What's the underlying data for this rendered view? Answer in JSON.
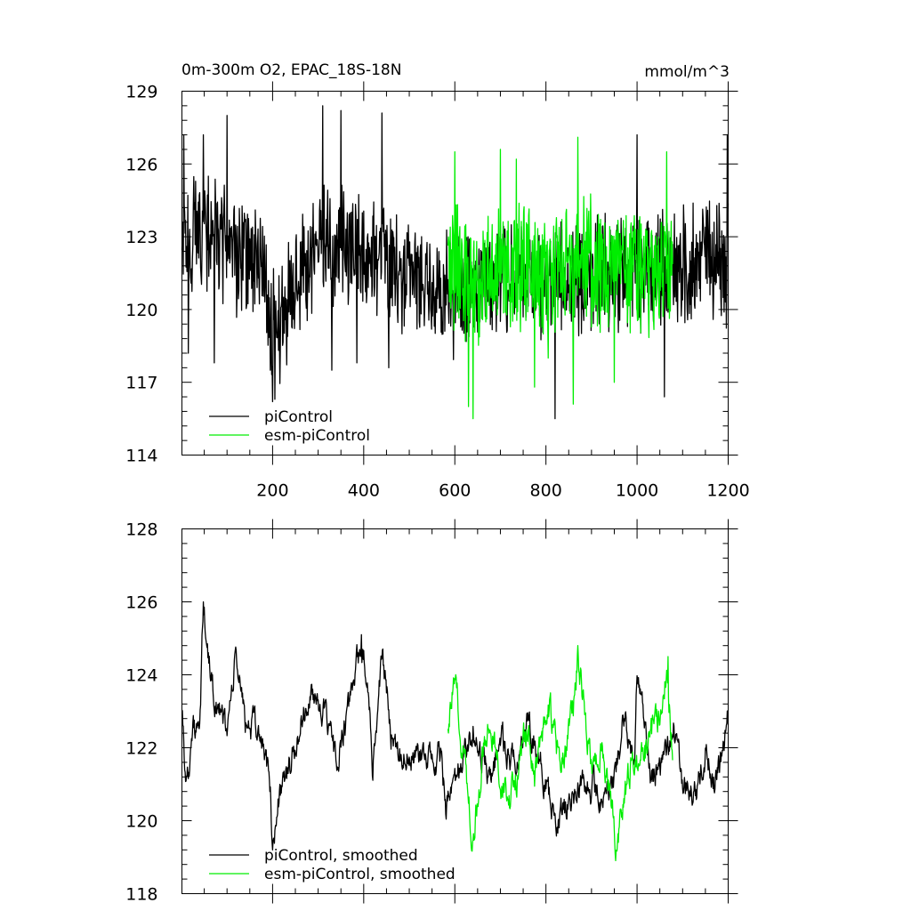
{
  "chart_data": [
    {
      "type": "line",
      "title": "0m-300m O2, EPAC_18S-18N",
      "units": "mmol/m^3",
      "xlim": [
        1,
        1200
      ],
      "ylim": [
        114,
        129
      ],
      "xticks": [
        200,
        400,
        600,
        800,
        1000,
        1200
      ],
      "yticks": [
        114,
        117,
        120,
        123,
        126,
        129
      ],
      "grid": false,
      "legend_position": "bottom-left",
      "series": [
        {
          "name": "piControl",
          "color": "#000000",
          "x_range": [
            1,
            1200
          ],
          "mean": 122.2,
          "noise_amplitude": 2.0,
          "anchors": [
            [
              1,
              122.5
            ],
            [
              40,
              123.5
            ],
            [
              100,
              122.5
            ],
            [
              180,
              121.5
            ],
            [
              200,
              119
            ],
            [
              300,
              123
            ],
            [
              330,
              122.5
            ],
            [
              400,
              122.5
            ],
            [
              500,
              121.5
            ],
            [
              560,
              121
            ],
            [
              600,
              120.5
            ],
            [
              700,
              121.5
            ],
            [
              800,
              121
            ],
            [
              900,
              121.5
            ],
            [
              1000,
              121.5
            ],
            [
              1100,
              121.8
            ],
            [
              1200,
              122
            ]
          ],
          "spikes": [
            [
              5,
              127.2
            ],
            [
              15,
              118.2
            ],
            [
              48,
              127.2
            ],
            [
              72,
              117.8
            ],
            [
              100,
              128
            ],
            [
              200,
              116.2
            ],
            [
              205,
              116.3
            ],
            [
              310,
              128.4
            ],
            [
              330,
              117.5
            ],
            [
              350,
              128.2
            ],
            [
              385,
              117.8
            ],
            [
              440,
              128.1
            ],
            [
              455,
              117.6
            ],
            [
              820,
              115.5
            ],
            [
              1000,
              127.2
            ],
            [
              1060,
              116.4
            ],
            [
              1198,
              127.2
            ]
          ]
        },
        {
          "name": "esm-piControl",
          "color": "#00ee00",
          "x_range": [
            585,
            1078
          ],
          "mean": 121.8,
          "noise_amplitude": 2.2,
          "anchors": [
            [
              585,
              122
            ],
            [
              650,
              121
            ],
            [
              700,
              122
            ],
            [
              800,
              121.5
            ],
            [
              900,
              122
            ],
            [
              1000,
              121.5
            ],
            [
              1078,
              122
            ]
          ],
          "spikes": [
            [
              600,
              126.5
            ],
            [
              630,
              116
            ],
            [
              640,
              115.5
            ],
            [
              700,
              126.6
            ],
            [
              735,
              126.2
            ],
            [
              775,
              116.8
            ],
            [
              805,
              118
            ],
            [
              870,
              127.1
            ],
            [
              860,
              116.1
            ],
            [
              950,
              117
            ],
            [
              1065,
              126.5
            ]
          ]
        }
      ]
    },
    {
      "type": "line",
      "title": "",
      "xlim": [
        1,
        1200
      ],
      "ylim": [
        118,
        128
      ],
      "xticks": [
        200,
        400,
        600,
        800,
        1000,
        1200
      ],
      "yticks": [
        118,
        120,
        122,
        124,
        126,
        128
      ],
      "grid": false,
      "legend_position": "bottom-left",
      "series": [
        {
          "name": "piControl, smoothed",
          "color": "#000000",
          "x_range": [
            1,
            1200
          ],
          "noise_amplitude": 0.45,
          "anchors": [
            [
              1,
              123.3
            ],
            [
              10,
              121
            ],
            [
              25,
              122.5
            ],
            [
              40,
              122.3
            ],
            [
              48,
              126
            ],
            [
              60,
              124.2
            ],
            [
              80,
              123
            ],
            [
              100,
              122.5
            ],
            [
              120,
              124.5
            ],
            [
              140,
              122.7
            ],
            [
              170,
              122.4
            ],
            [
              185,
              121.8
            ],
            [
              195,
              120.7
            ],
            [
              200,
              119.2
            ],
            [
              215,
              120.8
            ],
            [
              240,
              121.5
            ],
            [
              270,
              123
            ],
            [
              300,
              123.5
            ],
            [
              320,
              122.5
            ],
            [
              340,
              121.7
            ],
            [
              360,
              122.5
            ],
            [
              380,
              124
            ],
            [
              395,
              124.8
            ],
            [
              410,
              123.7
            ],
            [
              420,
              121.5
            ],
            [
              440,
              124.6
            ],
            [
              460,
              122.5
            ],
            [
              480,
              121.9
            ],
            [
              500,
              121.7
            ],
            [
              570,
              121.7
            ],
            [
              580,
              120.3
            ],
            [
              620,
              121.6
            ],
            [
              640,
              122.5
            ],
            [
              660,
              121.7
            ],
            [
              680,
              121
            ],
            [
              700,
              122.3
            ],
            [
              730,
              121.6
            ],
            [
              760,
              122.8
            ],
            [
              790,
              121.5
            ],
            [
              820,
              120
            ],
            [
              850,
              120.4
            ],
            [
              880,
              121.2
            ],
            [
              920,
              120.7
            ],
            [
              950,
              121
            ],
            [
              970,
              122.7
            ],
            [
              995,
              121.8
            ],
            [
              1000,
              124.3
            ],
            [
              1030,
              121.2
            ],
            [
              1060,
              121.6
            ],
            [
              1080,
              122.6
            ],
            [
              1100,
              121.1
            ],
            [
              1130,
              120.7
            ],
            [
              1150,
              121.9
            ],
            [
              1170,
              121
            ],
            [
              1185,
              121.6
            ],
            [
              1198,
              122.8
            ]
          ],
          "spikes": [
            [
              48,
              126
            ],
            [
              200,
              119.2
            ],
            [
              395,
              125.1
            ]
          ]
        },
        {
          "name": "esm-piControl, smoothed",
          "color": "#00ee00",
          "x_range": [
            585,
            1078
          ],
          "noise_amplitude": 0.5,
          "anchors": [
            [
              585,
              122.8
            ],
            [
              600,
              123.7
            ],
            [
              615,
              122.3
            ],
            [
              630,
              120.8
            ],
            [
              640,
              119.4
            ],
            [
              660,
              121.8
            ],
            [
              680,
              122.7
            ],
            [
              700,
              121.2
            ],
            [
              720,
              120.5
            ],
            [
              745,
              121.7
            ],
            [
              760,
              122.6
            ],
            [
              775,
              121.2
            ],
            [
              790,
              122.3
            ],
            [
              810,
              123
            ],
            [
              830,
              121.5
            ],
            [
              850,
              122.3
            ],
            [
              860,
              123.1
            ],
            [
              870,
              124.6
            ],
            [
              885,
              123
            ],
            [
              900,
              121.5
            ],
            [
              920,
              122
            ],
            [
              940,
              121
            ],
            [
              950,
              119.8
            ],
            [
              955,
              119.3
            ],
            [
              970,
              120.5
            ],
            [
              990,
              121.8
            ],
            [
              1010,
              121.7
            ],
            [
              1030,
              122.3
            ],
            [
              1050,
              123
            ],
            [
              1065,
              124.4
            ],
            [
              1078,
              122
            ]
          ],
          "spikes": [
            [
              870,
              124.8
            ],
            [
              955,
              119.2
            ],
            [
              1068,
              124.5
            ]
          ]
        }
      ]
    }
  ]
}
